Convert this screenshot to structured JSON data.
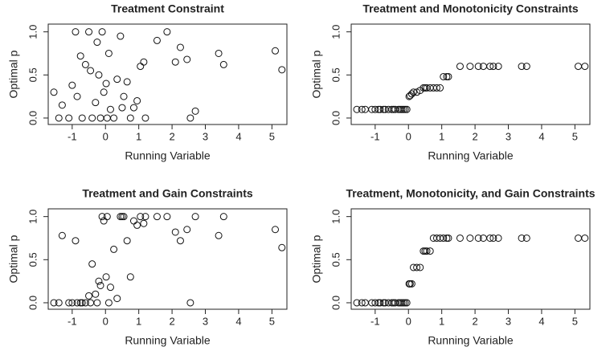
{
  "chart_data": [
    {
      "type": "scatter",
      "title": "Treatment Constraint",
      "x_label": "Running Variable",
      "y_label": "Optimal p",
      "xlim": [
        -1.72,
        5.45
      ],
      "ylim": [
        -0.075,
        1.09
      ],
      "xticks": [
        -1,
        0,
        1,
        2,
        3,
        4,
        5
      ],
      "yticks": [
        {
          "value": 0,
          "label": "0.0"
        },
        {
          "value": 0.5,
          "label": "0.5"
        },
        {
          "value": 1,
          "label": "1.0"
        }
      ],
      "x": [
        -1.55,
        -1.4,
        -1.3,
        -1.1,
        -1.0,
        -0.9,
        -0.85,
        -0.75,
        -0.7,
        -0.6,
        -0.5,
        -0.45,
        -0.4,
        -0.3,
        -0.25,
        -0.2,
        -0.15,
        -0.1,
        -0.05,
        0.02,
        0.05,
        0.1,
        0.15,
        0.25,
        0.35,
        0.45,
        0.5,
        0.55,
        0.65,
        0.75,
        0.85,
        0.95,
        1.05,
        1.15,
        1.2,
        1.55,
        1.85,
        2.1,
        2.25,
        2.45,
        2.55,
        2.7,
        3.4,
        3.55,
        5.1,
        5.3
      ],
      "values": [
        0.3,
        0,
        0.15,
        0,
        0.38,
        1.0,
        0.25,
        0.72,
        0,
        0.62,
        1.0,
        0.55,
        0,
        0.18,
        0.88,
        0.5,
        0,
        1.0,
        0.3,
        0.4,
        0,
        0.75,
        0.1,
        0,
        0.45,
        0.95,
        0.12,
        0.25,
        0.42,
        0,
        0.12,
        0.2,
        0.6,
        0.65,
        0,
        0.9,
        1.0,
        0.65,
        0.82,
        0.68,
        0,
        0.08,
        0.75,
        0.62,
        0.78,
        0.56
      ]
    },
    {
      "type": "scatter",
      "title": "Treatment and Monotonicity Constraints",
      "x_label": "Running Variable",
      "y_label": "Optimal p",
      "xlim": [
        -1.72,
        5.45
      ],
      "ylim": [
        -0.075,
        1.09
      ],
      "xticks": [
        -1,
        0,
        1,
        2,
        3,
        4,
        5
      ],
      "yticks": [
        {
          "value": 0,
          "label": "0.0"
        },
        {
          "value": 0.5,
          "label": "0.5"
        },
        {
          "value": 1,
          "label": "1.0"
        }
      ],
      "x": [
        -1.55,
        -1.4,
        -1.3,
        -1.1,
        -1.0,
        -0.9,
        -0.85,
        -0.75,
        -0.7,
        -0.6,
        -0.5,
        -0.45,
        -0.4,
        -0.3,
        -0.25,
        -0.2,
        -0.15,
        -0.1,
        -0.05,
        0.02,
        0.05,
        0.1,
        0.15,
        0.25,
        0.35,
        0.45,
        0.5,
        0.55,
        0.65,
        0.75,
        0.85,
        0.95,
        1.05,
        1.15,
        1.2,
        1.55,
        1.85,
        2.1,
        2.25,
        2.45,
        2.55,
        2.7,
        3.4,
        3.55,
        5.1,
        5.3
      ],
      "values": [
        0.1,
        0.1,
        0.1,
        0.1,
        0.1,
        0.1,
        0.1,
        0.1,
        0.1,
        0.1,
        0.1,
        0.1,
        0.1,
        0.1,
        0.1,
        0.1,
        0.1,
        0.1,
        0.1,
        0.25,
        0.26,
        0.28,
        0.3,
        0.3,
        0.32,
        0.35,
        0.35,
        0.35,
        0.35,
        0.35,
        0.35,
        0.35,
        0.48,
        0.48,
        0.48,
        0.6,
        0.6,
        0.6,
        0.6,
        0.6,
        0.6,
        0.6,
        0.6,
        0.6,
        0.6,
        0.6
      ]
    },
    {
      "type": "scatter",
      "title": "Treatment and Gain Constraints",
      "x_label": "Running Variable",
      "y_label": "Optimal p",
      "xlim": [
        -1.72,
        5.45
      ],
      "ylim": [
        -0.075,
        1.09
      ],
      "xticks": [
        -1,
        0,
        1,
        2,
        3,
        4,
        5
      ],
      "yticks": [
        {
          "value": 0,
          "label": "0.0"
        },
        {
          "value": 0.5,
          "label": "0.5"
        },
        {
          "value": 1,
          "label": "1.0"
        }
      ],
      "x": [
        -1.55,
        -1.4,
        -1.3,
        -1.1,
        -1.0,
        -0.9,
        -0.85,
        -0.75,
        -0.7,
        -0.6,
        -0.5,
        -0.45,
        -0.4,
        -0.3,
        -0.25,
        -0.2,
        -0.15,
        -0.1,
        -0.05,
        0.02,
        0.05,
        0.1,
        0.15,
        0.25,
        0.35,
        0.45,
        0.5,
        0.55,
        0.65,
        0.75,
        0.85,
        0.95,
        1.05,
        1.15,
        1.2,
        1.55,
        1.85,
        2.1,
        2.25,
        2.45,
        2.55,
        2.7,
        3.4,
        3.55,
        5.1,
        5.3
      ],
      "values": [
        0,
        0,
        0.78,
        0,
        0,
        0.72,
        0,
        0,
        0,
        0,
        0.08,
        0,
        0.45,
        0.1,
        0,
        0.25,
        0.2,
        1.0,
        0.95,
        0.3,
        1.0,
        0,
        0.18,
        0.62,
        0.05,
        1.0,
        1.0,
        1.0,
        0.72,
        0.3,
        0.95,
        0.9,
        1.0,
        0.92,
        1.0,
        1.0,
        1.0,
        0.82,
        0.72,
        0.85,
        0,
        1.0,
        0.78,
        1.0,
        0.85,
        0.64
      ]
    },
    {
      "type": "scatter",
      "title": "Treatment, Monotonicity, and Gain Constraints",
      "x_label": "Running Variable",
      "y_label": "Optimal p",
      "xlim": [
        -1.72,
        5.45
      ],
      "ylim": [
        -0.075,
        1.09
      ],
      "xticks": [
        -1,
        0,
        1,
        2,
        3,
        4,
        5
      ],
      "yticks": [
        {
          "value": 0,
          "label": "0.0"
        },
        {
          "value": 0.5,
          "label": "0.5"
        },
        {
          "value": 1,
          "label": "1.0"
        }
      ],
      "x": [
        -1.55,
        -1.4,
        -1.3,
        -1.1,
        -1.0,
        -0.9,
        -0.85,
        -0.75,
        -0.7,
        -0.6,
        -0.5,
        -0.45,
        -0.4,
        -0.3,
        -0.25,
        -0.2,
        -0.15,
        -0.1,
        -0.05,
        0.02,
        0.05,
        0.1,
        0.15,
        0.25,
        0.35,
        0.45,
        0.5,
        0.55,
        0.65,
        0.75,
        0.85,
        0.95,
        1.05,
        1.15,
        1.2,
        1.55,
        1.85,
        2.1,
        2.25,
        2.45,
        2.55,
        2.7,
        3.4,
        3.55,
        5.1,
        5.3
      ],
      "values": [
        0,
        0,
        0,
        0,
        0,
        0,
        0,
        0,
        0,
        0,
        0,
        0,
        0,
        0,
        0,
        0,
        0,
        0,
        0,
        0.22,
        0.22,
        0.22,
        0.41,
        0.41,
        0.41,
        0.6,
        0.6,
        0.6,
        0.6,
        0.75,
        0.75,
        0.75,
        0.75,
        0.75,
        0.75,
        0.75,
        0.75,
        0.75,
        0.75,
        0.75,
        0.75,
        0.75,
        0.75,
        0.75,
        0.75,
        0.75
      ]
    }
  ]
}
